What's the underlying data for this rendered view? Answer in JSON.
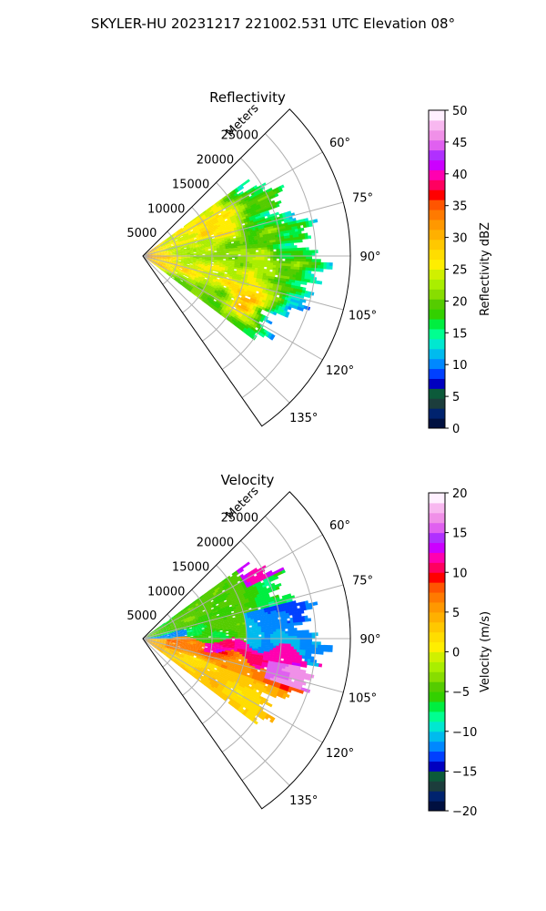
{
  "figure": {
    "suptitle": "SKYLER-HU  20231217  221002.531 UTC Elevation 08°"
  },
  "chart_data": [
    {
      "type": "heatmap",
      "projection": "polar-sector",
      "title": "Reflectivity",
      "radial_label": "Meters",
      "radial_ticks": [
        5000,
        10000,
        15000,
        20000,
        25000
      ],
      "radial_tick_labels": [
        "5000",
        "10000",
        "15000",
        "20000",
        "25000"
      ],
      "rmax": 30000,
      "azimuth_range_deg": [
        45,
        145
      ],
      "azimuth_ticks_deg": [
        60,
        75,
        90,
        105,
        120,
        135
      ],
      "azimuth_tick_labels": [
        "60°",
        "75°",
        "90°",
        "105°",
        "120°",
        "135°"
      ],
      "grid": true,
      "data_azimuth_deg": [
        54,
        127
      ],
      "colorbar": {
        "label": "Reflectivity dBZ",
        "vmin": 0,
        "vmax": 50,
        "ticks": [
          0,
          5,
          10,
          15,
          20,
          25,
          30,
          35,
          40,
          45,
          50
        ],
        "tick_labels": [
          "0",
          "5",
          "10",
          "15",
          "20",
          "25",
          "30",
          "35",
          "40",
          "45",
          "50"
        ]
      },
      "field_description": "mostly 20–30 dBZ, higher (35–40) near origin and in patches"
    },
    {
      "type": "heatmap",
      "projection": "polar-sector",
      "title": "Velocity",
      "radial_label": "Meters",
      "radial_ticks": [
        5000,
        10000,
        15000,
        20000,
        25000
      ],
      "radial_tick_labels": [
        "5000",
        "10000",
        "15000",
        "20000",
        "25000"
      ],
      "rmax": 30000,
      "azimuth_range_deg": [
        45,
        145
      ],
      "azimuth_ticks_deg": [
        60,
        75,
        90,
        105,
        120,
        135
      ],
      "azimuth_tick_labels": [
        "60°",
        "75°",
        "90°",
        "105°",
        "120°",
        "135°"
      ],
      "grid": true,
      "data_azimuth_deg": [
        54,
        127
      ],
      "colorbar": {
        "label": "Velocity (m/s)",
        "vmin": -20,
        "vmax": 20,
        "ticks": [
          -20,
          -15,
          -10,
          -5,
          0,
          5,
          10,
          15,
          20
        ],
        "tick_labels": [
          "−20",
          "−15",
          "−10",
          "−5",
          "0",
          "5",
          "10",
          "15",
          "20"
        ]
      },
      "field_description": "negative (green/cyan) north of ~90°, positive (red/magenta) south"
    }
  ],
  "colormaps": {
    "reflectivity": [
      "#001040",
      "#00236e",
      "#1c3d3c",
      "#0c5a3a",
      "#0000c0",
      "#0040ff",
      "#0088ff",
      "#00bbee",
      "#00e8d0",
      "#00ff90",
      "#00ee40",
      "#33d000",
      "#55cc00",
      "#88dd00",
      "#aaee00",
      "#d0f000",
      "#ffee00",
      "#ffdd00",
      "#ffc800",
      "#ffb000",
      "#ff9800",
      "#ff7a00",
      "#ff5500",
      "#ff0000",
      "#ff0060",
      "#ff00b0",
      "#cc00ff",
      "#b030ff",
      "#e060f0",
      "#f090e8",
      "#f8b8f0",
      "#fff0ff"
    ],
    "velocity": [
      "#001040",
      "#00236e",
      "#1c3d3c",
      "#0c5a3a",
      "#0000c0",
      "#0040ff",
      "#0088ff",
      "#00bbee",
      "#00e8d0",
      "#00ff90",
      "#00ee40",
      "#33d000",
      "#55cc00",
      "#88dd00",
      "#aaee00",
      "#d0f000",
      "#ffee00",
      "#ffdd00",
      "#ffc800",
      "#ffb000",
      "#ff9800",
      "#ff7a00",
      "#ff5500",
      "#ff0000",
      "#ff0060",
      "#ff00b0",
      "#cc00ff",
      "#b030ff",
      "#e060f0",
      "#f090e8",
      "#f8b8f0",
      "#fff0ff"
    ]
  }
}
